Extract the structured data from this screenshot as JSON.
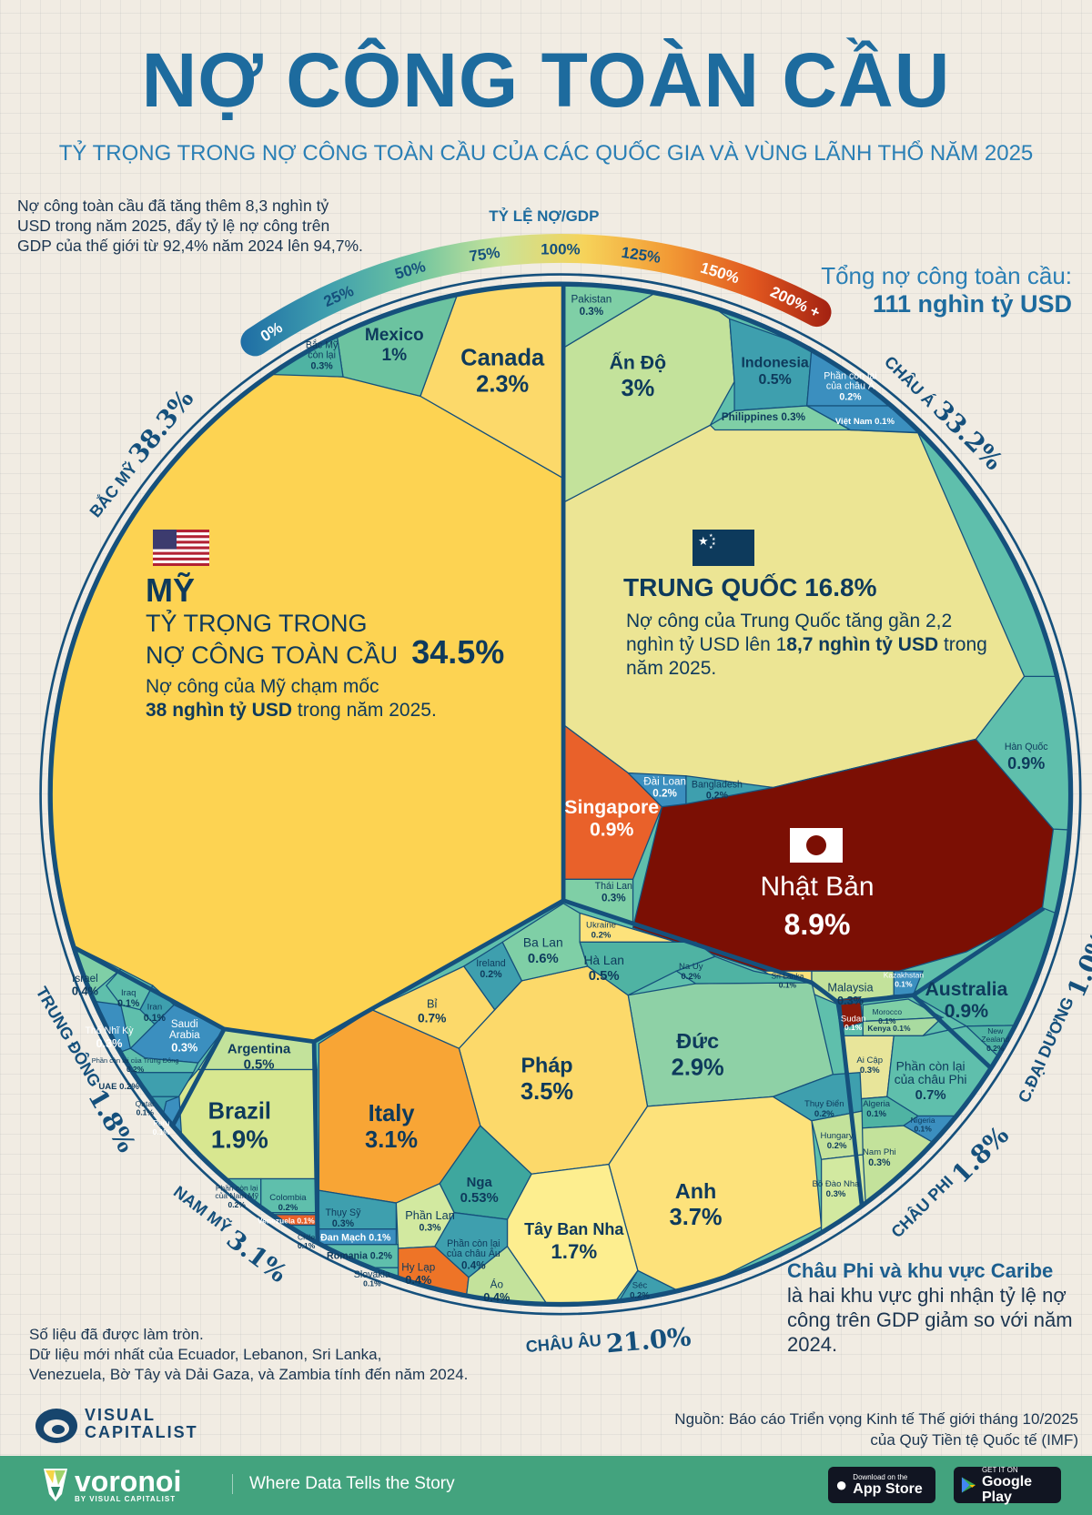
{
  "header": {
    "title": "NỢ CÔNG TOÀN CẦU",
    "subtitle": "TỶ TRỌNG TRONG NỢ CÔNG TOÀN CẦU CỦA CÁC QUỐC GIA VÀ VÙNG LÃNH THỔ NĂM 2025"
  },
  "intro": "Nợ công toàn cầu đã tăng thêm 8,3 nghìn tỷ USD trong năm 2025, đẩy tỷ lệ nợ công trên GDP của thế giới từ 92,4% năm 2024 lên 94,7%.",
  "total": {
    "label": "Tổng nợ công toàn cầu:",
    "value": "111 nghìn tỷ USD"
  },
  "scale": {
    "title": "TỶ LỆ NỢ/GDP",
    "ticks": [
      "0%",
      "25%",
      "50%",
      "75%",
      "100%",
      "125%",
      "150%",
      "200% +"
    ],
    "colors": [
      "#1f6ea5",
      "#3f9fae",
      "#6cc3a0",
      "#c8e39a",
      "#f6d35a",
      "#f29a35",
      "#e0561f",
      "#9b1b10"
    ]
  },
  "regions": [
    {
      "name": "BẮC MỸ",
      "value": "38.3%"
    },
    {
      "name": "CHÂU Á",
      "value": "33.2%"
    },
    {
      "name": "C.ĐẠI DƯƠNG",
      "value": "1.0%"
    },
    {
      "name": "CHÂU PHI",
      "value": "1.8%"
    },
    {
      "name": "CHÂU ÂU",
      "value": "21.0%"
    },
    {
      "name": "NAM MỸ",
      "value": "3.1%"
    },
    {
      "name": "TRUNG ĐÔNG",
      "value": "1.8%"
    }
  ],
  "us": {
    "flag": "us-flag-icon",
    "name": "MỸ",
    "line1": "TỶ TRỌNG TRONG",
    "line2": "NỢ CÔNG TOÀN CẦU",
    "pct": "34.5%",
    "desc1": "Nợ công của Mỹ chạm mốc",
    "desc_bold": "38 nghìn tỷ USD",
    "desc2": " trong năm 2025."
  },
  "china": {
    "flag": "china-flag-icon",
    "name": "TRUNG QUỐC",
    "pct": "16.8%",
    "desc1": "Nợ công của Trung Quốc tăng gần 2,2 nghìn tỷ USD lên 1",
    "desc_bold": "8,7 nghìn tỷ USD",
    "desc2": " trong năm 2025."
  },
  "japan": {
    "flag": "japan-flag-icon",
    "name": "Nhật Bản",
    "pct": "8.9%"
  },
  "notes": [
    "Số liệu đã được làm tròn.",
    "Dữ liệu mới nhất của Ecuador, Lebanon, Sri Lanka,",
    "Venezuela, Bờ Tây và Dải Gaza, và Zambia tính đến năm 2024."
  ],
  "africa_note": {
    "bold": "Châu Phi và khu vực Caribe",
    "text": "là hai khu vực ghi nhận tỷ lệ nợ công trên GDP giảm so với năm 2024."
  },
  "source": {
    "line1": "Nguồn: Báo cáo Triển vọng Kinh tế Thế giới tháng 10/2025",
    "line2": "của Quỹ Tiền tệ Quốc tế (IMF)"
  },
  "branding": {
    "vc_line1": "VISUAL",
    "vc_line2": "CAPITALIST",
    "voronoi": "voronoi",
    "voronoi_by": "BY VISUAL CAPITALIST",
    "tagline": "Where Data Tells the Story",
    "appstore_small": "Download on the",
    "appstore_large": "App Store",
    "gplay_small": "GET IT ON",
    "gplay_large": "Google Play"
  },
  "chart_data": {
    "type": "treemap",
    "title": "NỢ CÔNG TOÀN CẦU",
    "unit": "% share of global public debt",
    "cells": [
      {
        "name": "Mỹ",
        "value": 34.5,
        "region": "Bắc Mỹ",
        "color": "#fdd352"
      },
      {
        "name": "Canada",
        "value": 2.3,
        "region": "Bắc Mỹ",
        "color": "#fcd96a"
      },
      {
        "name": "Mexico",
        "value": 1.0,
        "region": "Bắc Mỹ",
        "color": "#6cc3a0"
      },
      {
        "name": "Bắc Mỹ\ncòn lại",
        "value": 0.3,
        "region": "Bắc Mỹ",
        "color": "#4fb3a3"
      },
      {
        "name": "Trung Quốc",
        "value": 16.8,
        "region": "Châu Á",
        "color": "#ece594"
      },
      {
        "name": "Nhật Bản",
        "value": 8.9,
        "region": "Châu Á",
        "color": "#7b0f04"
      },
      {
        "name": "Ấn Độ",
        "value": 3.0,
        "region": "Châu Á",
        "color": "#c3e29b"
      },
      {
        "name": "Indonesia",
        "value": 0.5,
        "region": "Châu Á",
        "color": "#3e9fae"
      },
      {
        "name": "Phần còn lại\ncủa châu Á",
        "value": 0.2,
        "region": "Châu Á",
        "color": "#3b8fbf"
      },
      {
        "name": "Philippines",
        "value": 0.3,
        "region": "Châu Á",
        "color": "#7fcfa6"
      },
      {
        "name": "Việt Nam",
        "value": 0.1,
        "region": "Châu Á",
        "color": "#3b8fbf"
      },
      {
        "name": "Pakistan",
        "value": 0.3,
        "region": "Châu Á",
        "color": "#7fcfa6"
      },
      {
        "name": "Hàn Quốc",
        "value": 0.9,
        "region": "Châu Á",
        "color": "#5fbfac"
      },
      {
        "name": "Singapore",
        "value": 0.9,
        "region": "Châu Á",
        "color": "#e9612a"
      },
      {
        "name": "Đài Loan",
        "value": 0.2,
        "region": "Châu Á",
        "color": "#3b8fbf"
      },
      {
        "name": "Bangladesh",
        "value": 0.2,
        "region": "Châu Á",
        "color": "#3e9fae"
      },
      {
        "name": "Thái Lan",
        "value": 0.3,
        "region": "Châu Á",
        "color": "#7fcfa6"
      },
      {
        "name": "Sri Lanka",
        "value": 0.1,
        "region": "Châu Á",
        "color": "#fde27b"
      },
      {
        "name": "Malaysia",
        "value": 0.3,
        "region": "Châu Á",
        "color": "#c3e29b"
      },
      {
        "name": "Kazakhstan",
        "value": 0.1,
        "region": "Châu Á",
        "color": "#3b8fbf"
      },
      {
        "name": "Australia",
        "value": 0.9,
        "region": "Châu Đại Dương",
        "color": "#4fb3a3"
      },
      {
        "name": "New\nZealand",
        "value": 0.2,
        "region": "Châu Đại Dương",
        "color": "#4fb3a3"
      },
      {
        "name": "Sudan",
        "value": 0.1,
        "region": "Châu Phi",
        "color": "#8b1a0a"
      },
      {
        "name": "Morocco",
        "value": 0.1,
        "region": "Châu Phi",
        "color": "#7fcfa6"
      },
      {
        "name": "Kenya",
        "value": 0.1,
        "region": "Châu Phi",
        "color": "#a9dba0"
      },
      {
        "name": "Ai Cập",
        "value": 0.3,
        "region": "Châu Phi",
        "color": "#e8e59a"
      },
      {
        "name": "Phần còn lại\ncủa châu Phi",
        "value": 0.7,
        "region": "Châu Phi",
        "color": "#5fbfac"
      },
      {
        "name": "Algeria",
        "value": 0.1,
        "region": "Châu Phi",
        "color": "#4fb3a3"
      },
      {
        "name": "Nigeria",
        "value": 0.1,
        "region": "Châu Phi",
        "color": "#3b8fbf"
      },
      {
        "name": "Nam Phi",
        "value": 0.3,
        "region": "Châu Phi",
        "color": "#c3e29b"
      },
      {
        "name": "Đức",
        "value": 2.9,
        "region": "Châu Âu",
        "color": "#8ed1a6"
      },
      {
        "name": "Pháp",
        "value": 3.5,
        "region": "Châu Âu",
        "color": "#fcd96a"
      },
      {
        "name": "Anh",
        "value": 3.7,
        "region": "Châu Âu",
        "color": "#fde27b"
      },
      {
        "name": "Italy",
        "value": 3.1,
        "region": "Châu Âu",
        "color": "#f8a535"
      },
      {
        "name": "Tây Ban Nha",
        "value": 1.7,
        "region": "Châu Âu",
        "color": "#fdee8f"
      },
      {
        "name": "Bỉ",
        "value": 0.7,
        "region": "Châu Âu",
        "color": "#fcd96a"
      },
      {
        "name": "Ireland",
        "value": 0.2,
        "region": "Châu Âu",
        "color": "#3e9fae"
      },
      {
        "name": "Ba Lan",
        "value": 0.6,
        "region": "Châu Âu",
        "color": "#7fcfa6"
      },
      {
        "name": "Ukraine",
        "value": 0.2,
        "region": "Châu Âu",
        "color": "#fde27b"
      },
      {
        "name": "Hà Lan",
        "value": 0.5,
        "region": "Châu Âu",
        "color": "#4fb3a3"
      },
      {
        "name": "Na Uy",
        "value": 0.2,
        "region": "Châu Âu",
        "color": "#4fb3a3"
      },
      {
        "name": "Nga",
        "value": 0.53,
        "region": "Châu Âu",
        "color": "#3ea79e"
      },
      {
        "name": "Phần Lan",
        "value": 0.3,
        "region": "Châu Âu",
        "color": "#d2e9a0"
      },
      {
        "name": "Phần còn lại\ncủa châu Âu",
        "value": 0.4,
        "region": "Châu Âu",
        "color": "#3e9fae"
      },
      {
        "name": "Hy Lạp",
        "value": 0.4,
        "region": "Châu Âu",
        "color": "#ee7427"
      },
      {
        "name": "Áo",
        "value": 0.4,
        "region": "Châu Âu",
        "color": "#c3e29b"
      },
      {
        "name": "Séc",
        "value": 0.2,
        "region": "Châu Âu",
        "color": "#3e9fae"
      },
      {
        "name": "Thụy Sỹ",
        "value": 0.3,
        "region": "Châu Âu",
        "color": "#3e9fae"
      },
      {
        "name": "Đan Mạch",
        "value": 0.1,
        "region": "Châu Âu",
        "color": "#3b8fbf"
      },
      {
        "name": "Romania",
        "value": 0.2,
        "region": "Châu Âu",
        "color": "#5fbfac"
      },
      {
        "name": "Slovakia",
        "value": 0.1,
        "region": "Châu Âu",
        "color": "#5fbfac"
      },
      {
        "name": "Thụy Điển",
        "value": 0.2,
        "region": "Châu Âu",
        "color": "#3e9fae"
      },
      {
        "name": "Hungary",
        "value": 0.2,
        "region": "Châu Âu",
        "color": "#c3e29b"
      },
      {
        "name": "Bồ Đào Nha",
        "value": 0.3,
        "region": "Châu Âu",
        "color": "#d2e9a0"
      },
      {
        "name": "Argentina",
        "value": 0.5,
        "region": "Nam Mỹ",
        "color": "#c3e29b"
      },
      {
        "name": "Brazil",
        "value": 1.9,
        "region": "Nam Mỹ",
        "color": "#d8e790"
      },
      {
        "name": "Phần còn lại\ncủa Nam Mỹ",
        "value": 0.2,
        "region": "Nam Mỹ",
        "color": "#5fbfac"
      },
      {
        "name": "Colombia",
        "value": 0.2,
        "region": "Nam Mỹ",
        "color": "#5fbfac"
      },
      {
        "name": "Venezuela",
        "value": 0.1,
        "region": "Nam Mỹ",
        "color": "#e9612a"
      },
      {
        "name": "Chile",
        "value": 0.1,
        "region": "Nam Mỹ",
        "color": "#3e9fae"
      },
      {
        "name": "Peru",
        "value": 0.1,
        "region": "Nam Mỹ",
        "color": "#3b8fbf"
      },
      {
        "name": "Israel",
        "value": 0.4,
        "region": "Trung Đông",
        "color": "#7fcfa6"
      },
      {
        "name": "Iraq",
        "value": 0.1,
        "region": "Trung Đông",
        "color": "#5fbfac"
      },
      {
        "name": "Iran",
        "value": 0.1,
        "region": "Trung Đông",
        "color": "#3e9fae"
      },
      {
        "name": "Thổ Nhĩ Kỳ",
        "value": 0.3,
        "region": "Trung Đông",
        "color": "#3b8fbf"
      },
      {
        "name": "Saudi\nArabia",
        "value": 0.3,
        "region": "Trung Đông",
        "color": "#3b8fbf"
      },
      {
        "name": "Phần còn lại của Trung Đông",
        "value": 0.2,
        "region": "Trung Đông",
        "color": "#5fbfac"
      },
      {
        "name": "UAE",
        "value": 0.2,
        "region": "Trung Đông",
        "color": "#3e9fae"
      },
      {
        "name": "Qatar",
        "value": 0.1,
        "region": "Trung Đông",
        "color": "#3e9fae"
      }
    ]
  }
}
